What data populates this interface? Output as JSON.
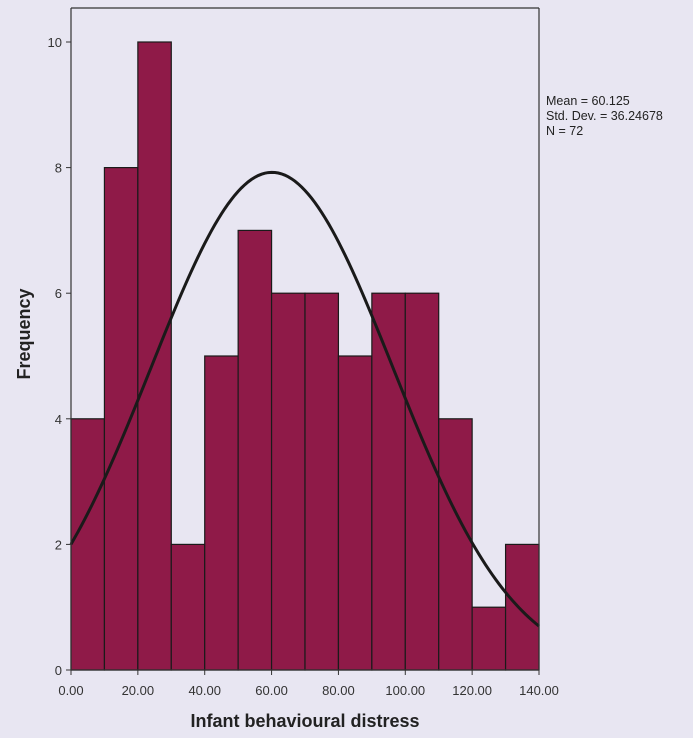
{
  "chart_data": {
    "type": "histogram",
    "title": "",
    "xlabel": "Infant behavioural distress",
    "ylabel": "Frequency",
    "bin_edges": [
      0,
      10,
      20,
      30,
      40,
      50,
      60,
      70,
      80,
      90,
      100,
      110,
      120,
      130,
      140
    ],
    "frequencies": [
      4,
      8,
      10,
      2,
      5,
      7,
      6,
      6,
      5,
      6,
      6,
      4,
      1,
      2
    ],
    "xlim": [
      0,
      140
    ],
    "ylim": [
      0,
      10.7
    ],
    "x_ticks": [
      0,
      20,
      40,
      60,
      80,
      100,
      120,
      140
    ],
    "x_tick_labels": [
      "0.00",
      "20.00",
      "40.00",
      "60.00",
      "80.00",
      "100.00",
      "120.00",
      "140.00"
    ],
    "y_ticks": [
      0,
      2,
      4,
      6,
      8,
      10
    ],
    "y_tick_labels": [
      "0",
      "2",
      "4",
      "6",
      "8",
      "10"
    ],
    "normal_curve": {
      "mean": 60.125,
      "std_dev": 36.24678,
      "n": 72,
      "bin_width": 10
    },
    "stats_lines": [
      "Mean = 60.125",
      "Std. Dev. = 36.24678",
      "N = 72"
    ],
    "colors": {
      "bar_fill": "#8f1a48",
      "bar_stroke": "#1a1a1a",
      "curve": "#1a1a1a",
      "plot_background": "#e8e6f2",
      "axis": "#333333"
    },
    "grid": false
  }
}
